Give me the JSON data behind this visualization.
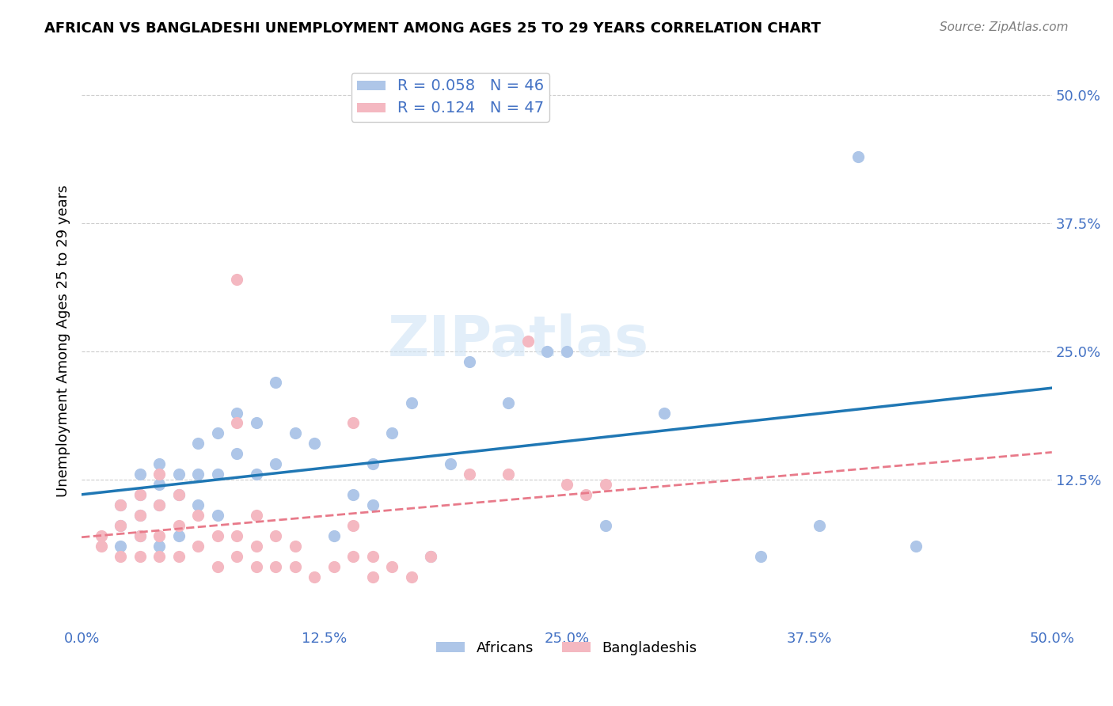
{
  "title": "AFRICAN VS BANGLADESHI UNEMPLOYMENT AMONG AGES 25 TO 29 YEARS CORRELATION CHART",
  "source": "Source: ZipAtlas.com",
  "xlabel": "",
  "ylabel": "Unemployment Among Ages 25 to 29 years",
  "xlim": [
    0.0,
    0.5
  ],
  "ylim": [
    -0.02,
    0.52
  ],
  "xtick_labels": [
    "0.0%",
    "12.5%",
    "25.0%",
    "37.5%",
    "50.0%"
  ],
  "xtick_vals": [
    0.0,
    0.125,
    0.25,
    0.375,
    0.5
  ],
  "ytick_labels": [
    "12.5%",
    "25.0%",
    "37.5%",
    "50.0%"
  ],
  "ytick_vals": [
    0.125,
    0.25,
    0.375,
    0.5
  ],
  "background_color": "#ffffff",
  "grid_color": "#cccccc",
  "african_color": "#aec6e8",
  "bangladeshi_color": "#f4b8c1",
  "african_line_color": "#1f77b4",
  "bangladeshi_line_color": "#e87a8a",
  "legend_r_african": "0.058",
  "legend_n_african": "46",
  "legend_r_bangladeshi": "0.124",
  "legend_n_bangladeshi": "47",
  "watermark": "ZIPatlas",
  "africans_x": [
    0.02,
    0.02,
    0.02,
    0.03,
    0.03,
    0.03,
    0.03,
    0.04,
    0.04,
    0.04,
    0.04,
    0.05,
    0.05,
    0.05,
    0.06,
    0.06,
    0.06,
    0.07,
    0.07,
    0.07,
    0.08,
    0.08,
    0.09,
    0.09,
    0.1,
    0.1,
    0.11,
    0.12,
    0.13,
    0.14,
    0.15,
    0.15,
    0.16,
    0.17,
    0.18,
    0.19,
    0.2,
    0.22,
    0.24,
    0.25,
    0.27,
    0.3,
    0.35,
    0.38,
    0.4,
    0.43
  ],
  "africans_y": [
    0.06,
    0.08,
    0.1,
    0.07,
    0.09,
    0.11,
    0.13,
    0.06,
    0.1,
    0.12,
    0.14,
    0.07,
    0.11,
    0.13,
    0.1,
    0.13,
    0.16,
    0.09,
    0.13,
    0.17,
    0.15,
    0.19,
    0.13,
    0.18,
    0.14,
    0.22,
    0.17,
    0.16,
    0.07,
    0.11,
    0.14,
    0.1,
    0.17,
    0.2,
    0.05,
    0.14,
    0.24,
    0.2,
    0.25,
    0.25,
    0.08,
    0.19,
    0.05,
    0.08,
    0.44,
    0.06
  ],
  "bangladeshis_x": [
    0.01,
    0.01,
    0.02,
    0.02,
    0.02,
    0.03,
    0.03,
    0.03,
    0.03,
    0.04,
    0.04,
    0.04,
    0.04,
    0.05,
    0.05,
    0.05,
    0.06,
    0.06,
    0.07,
    0.07,
    0.08,
    0.08,
    0.08,
    0.08,
    0.09,
    0.09,
    0.09,
    0.1,
    0.1,
    0.11,
    0.11,
    0.12,
    0.13,
    0.14,
    0.14,
    0.14,
    0.15,
    0.15,
    0.16,
    0.17,
    0.18,
    0.2,
    0.22,
    0.23,
    0.25,
    0.26,
    0.27
  ],
  "bangladeshis_y": [
    0.06,
    0.07,
    0.05,
    0.08,
    0.1,
    0.05,
    0.07,
    0.09,
    0.11,
    0.05,
    0.07,
    0.1,
    0.13,
    0.05,
    0.08,
    0.11,
    0.06,
    0.09,
    0.04,
    0.07,
    0.05,
    0.07,
    0.18,
    0.32,
    0.04,
    0.06,
    0.09,
    0.04,
    0.07,
    0.04,
    0.06,
    0.03,
    0.04,
    0.05,
    0.08,
    0.18,
    0.03,
    0.05,
    0.04,
    0.03,
    0.05,
    0.13,
    0.13,
    0.26,
    0.12,
    0.11,
    0.12
  ]
}
